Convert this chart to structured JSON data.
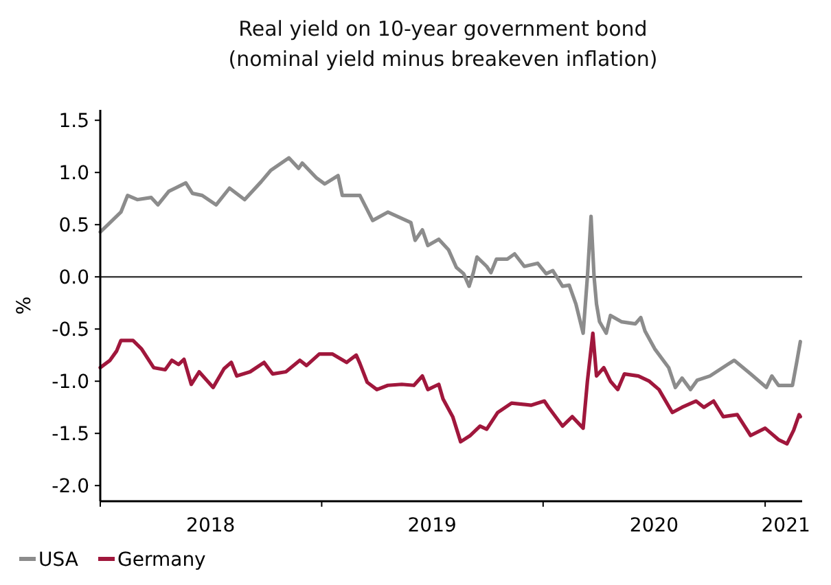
{
  "chart_data": {
    "type": "line",
    "title": "Real yield on 10-year government bond",
    "subtitle": "(nominal yield minus breakeven inflation)",
    "ylabel": "%",
    "xlim": [
      "2018-01-01",
      "2021-03-03"
    ],
    "xticks": [
      {
        "value": "2018-01-01",
        "label": null
      },
      {
        "value": "2018-07-02",
        "label": "2018"
      },
      {
        "value": "2019-01-01",
        "label": null
      },
      {
        "value": "2019-07-02",
        "label": "2019"
      },
      {
        "value": "2020-01-01",
        "label": null
      },
      {
        "value": "2020-07-02",
        "label": "2020"
      },
      {
        "value": "2021-01-01",
        "label": null
      },
      {
        "value": "2021-02-04",
        "label": "2021"
      }
    ],
    "ylim": [
      -2.15,
      1.6
    ],
    "yticks": [
      {
        "value": -2,
        "label": "-2.0"
      },
      {
        "value": -1.5,
        "label": "-1.5"
      },
      {
        "value": -1,
        "label": "-1.0"
      },
      {
        "value": -0.5,
        "label": "-0.5"
      },
      {
        "value": 0,
        "label": "0.0"
      },
      {
        "value": 0.5,
        "label": "0.5"
      },
      {
        "value": 1,
        "label": "1.0"
      },
      {
        "value": 1.5,
        "label": "1.5"
      }
    ],
    "ref_lines": [
      {
        "axis": "y",
        "value": 0,
        "color": "#404040"
      }
    ],
    "grid": false,
    "legend": "bottom left",
    "series": [
      {
        "name": "USA",
        "color": "#8c8c8c",
        "x": [
          "2018-01-01",
          "2018-01-12",
          "2018-02-04",
          "2018-02-15",
          "2018-03-03",
          "2018-03-26",
          "2018-04-06",
          "2018-04-24",
          "2018-05-22",
          "2018-06-02",
          "2018-06-18",
          "2018-07-11",
          "2018-08-02",
          "2018-08-27",
          "2018-09-23",
          "2018-10-09",
          "2018-11-08",
          "2018-11-24",
          "2018-11-30",
          "2018-12-23",
          "2019-01-06",
          "2019-01-28",
          "2019-02-04",
          "2019-03-05",
          "2019-03-26",
          "2019-04-20",
          "2019-05-13",
          "2019-05-28",
          "2019-06-04",
          "2019-06-16",
          "2019-06-25",
          "2019-07-13",
          "2019-07-29",
          "2019-08-11",
          "2019-08-23",
          "2019-09-01",
          "2019-09-08",
          "2019-09-14",
          "2019-09-30",
          "2019-10-07",
          "2019-10-16",
          "2019-11-03",
          "2019-11-15",
          "2019-12-01",
          "2019-12-23",
          "2020-01-06",
          "2020-01-17",
          "2020-02-02",
          "2020-02-13",
          "2020-02-24",
          "2020-03-07",
          "2020-03-14",
          "2020-03-20",
          "2020-03-25",
          "2020-03-29",
          "2020-04-03",
          "2020-04-14",
          "2020-04-21",
          "2020-05-09",
          "2020-06-01",
          "2020-06-10",
          "2020-06-17",
          "2020-07-03",
          "2020-07-26",
          "2020-08-06",
          "2020-08-17",
          "2020-08-31",
          "2020-09-11",
          "2020-10-02",
          "2020-10-31",
          "2020-11-11",
          "2020-12-08",
          "2021-01-03",
          "2021-01-12",
          "2021-01-23",
          "2021-02-15",
          "2021-02-22",
          "2021-02-28"
        ],
        "values": [
          0.43,
          0.49,
          0.62,
          0.78,
          0.74,
          0.76,
          0.69,
          0.82,
          0.9,
          0.8,
          0.78,
          0.69,
          0.85,
          0.74,
          0.91,
          1.02,
          1.14,
          1.04,
          1.09,
          0.95,
          0.89,
          0.97,
          0.78,
          0.78,
          0.54,
          0.62,
          0.56,
          0.52,
          0.35,
          0.45,
          0.3,
          0.36,
          0.26,
          0.09,
          0.03,
          -0.09,
          0.04,
          0.19,
          0.1,
          0.04,
          0.17,
          0.17,
          0.22,
          0.1,
          0.13,
          0.03,
          0.06,
          -0.09,
          -0.08,
          -0.26,
          -0.54,
          0,
          0.58,
          0,
          -0.26,
          -0.43,
          -0.54,
          -0.37,
          -0.43,
          -0.45,
          -0.39,
          -0.52,
          -0.69,
          -0.87,
          -1.06,
          -0.97,
          -1.08,
          -0.99,
          -0.95,
          -0.84,
          -0.8,
          -0.93,
          -1.06,
          -0.95,
          -1.04,
          -1.04,
          -0.82,
          -0.62
        ]
      },
      {
        "name": "Germany",
        "color": "#a0173c",
        "x": [
          "2018-01-01",
          "2018-01-17",
          "2018-01-28",
          "2018-02-04",
          "2018-02-24",
          "2018-03-10",
          "2018-03-30",
          "2018-04-18",
          "2018-04-29",
          "2018-05-10",
          "2018-05-19",
          "2018-05-31",
          "2018-06-13",
          "2018-07-06",
          "2018-07-24",
          "2018-08-05",
          "2018-08-14",
          "2018-09-05",
          "2018-09-28",
          "2018-10-12",
          "2018-11-03",
          "2018-11-26",
          "2018-12-07",
          "2018-12-28",
          "2019-01-19",
          "2019-02-11",
          "2019-02-27",
          "2019-03-05",
          "2019-03-17",
          "2019-04-02",
          "2019-04-20",
          "2019-05-13",
          "2019-06-02",
          "2019-06-16",
          "2019-06-25",
          "2019-07-13",
          "2019-07-20",
          "2019-08-05",
          "2019-08-18",
          "2019-09-03",
          "2019-09-19",
          "2019-09-30",
          "2019-10-18",
          "2019-11-10",
          "2019-12-12",
          "2020-01-03",
          "2020-01-10",
          "2020-02-02",
          "2020-02-18",
          "2020-03-07",
          "2020-03-14",
          "2020-03-23",
          "2020-03-29",
          "2020-04-10",
          "2020-04-21",
          "2020-05-03",
          "2020-05-14",
          "2020-06-06",
          "2020-06-24",
          "2020-07-10",
          "2020-08-01",
          "2020-08-17",
          "2020-09-09",
          "2020-09-22",
          "2020-10-08",
          "2020-10-24",
          "2020-11-16",
          "2020-12-08",
          "2021-01-01",
          "2021-01-23",
          "2021-02-06",
          "2021-02-17",
          "2021-02-26",
          "2021-02-28"
        ],
        "values": [
          -0.87,
          -0.8,
          -0.71,
          -0.61,
          -0.61,
          -0.69,
          -0.87,
          -0.89,
          -0.8,
          -0.84,
          -0.79,
          -1.03,
          -0.91,
          -1.06,
          -0.88,
          -0.82,
          -0.95,
          -0.91,
          -0.82,
          -0.93,
          -0.91,
          -0.8,
          -0.85,
          -0.74,
          -0.74,
          -0.82,
          -0.75,
          -0.83,
          -1.01,
          -1.08,
          -1.04,
          -1.03,
          -1.04,
          -0.95,
          -1.08,
          -1.03,
          -1.17,
          -1.34,
          -1.58,
          -1.52,
          -1.43,
          -1.46,
          -1.3,
          -1.21,
          -1.23,
          -1.19,
          -1.25,
          -1.43,
          -1.34,
          -1.45,
          -1.0,
          -0.54,
          -0.95,
          -0.87,
          -1.0,
          -1.08,
          -0.93,
          -0.95,
          -1.0,
          -1.08,
          -1.3,
          -1.25,
          -1.19,
          -1.25,
          -1.19,
          -1.34,
          -1.32,
          -1.52,
          -1.45,
          -1.56,
          -1.6,
          -1.47,
          -1.32,
          -1.34
        ]
      }
    ]
  }
}
